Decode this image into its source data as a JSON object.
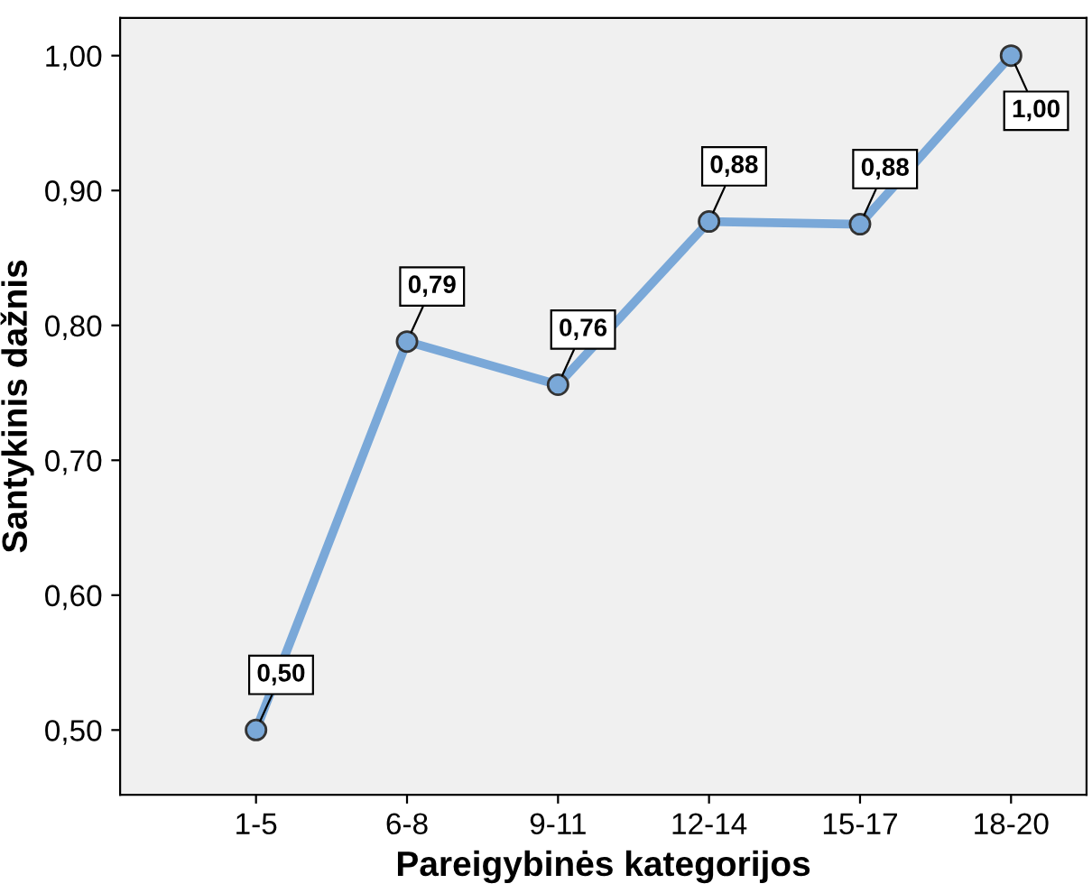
{
  "chart_data": {
    "type": "line",
    "xlabel": "Pareigybinės kategorijos",
    "ylabel": "Santykinis dažnis",
    "categories": [
      "1-5",
      "6-8",
      "9-11",
      "12-14",
      "15-17",
      "18-20"
    ],
    "series": [
      {
        "color": "#7aa8d8",
        "values": [
          0.5,
          0.788,
          0.756,
          0.877,
          0.875,
          1.0
        ],
        "value_labels": [
          "0,50",
          "0,79",
          "0,76",
          "0,88",
          "0,88",
          "1,00"
        ]
      }
    ],
    "marker": "circle",
    "line_style": "solid",
    "grid": false,
    "legend": false,
    "ylim": [
      0.452,
      1.028
    ],
    "yticks": [
      {
        "value": 0.5,
        "label": "0,50"
      },
      {
        "value": 0.6,
        "label": "0,60"
      },
      {
        "value": 0.7,
        "label": "0,70"
      },
      {
        "value": 0.8,
        "label": "0,80"
      },
      {
        "value": 0.9,
        "label": "0,90"
      },
      {
        "value": 1.0,
        "label": "1,00"
      }
    ]
  }
}
